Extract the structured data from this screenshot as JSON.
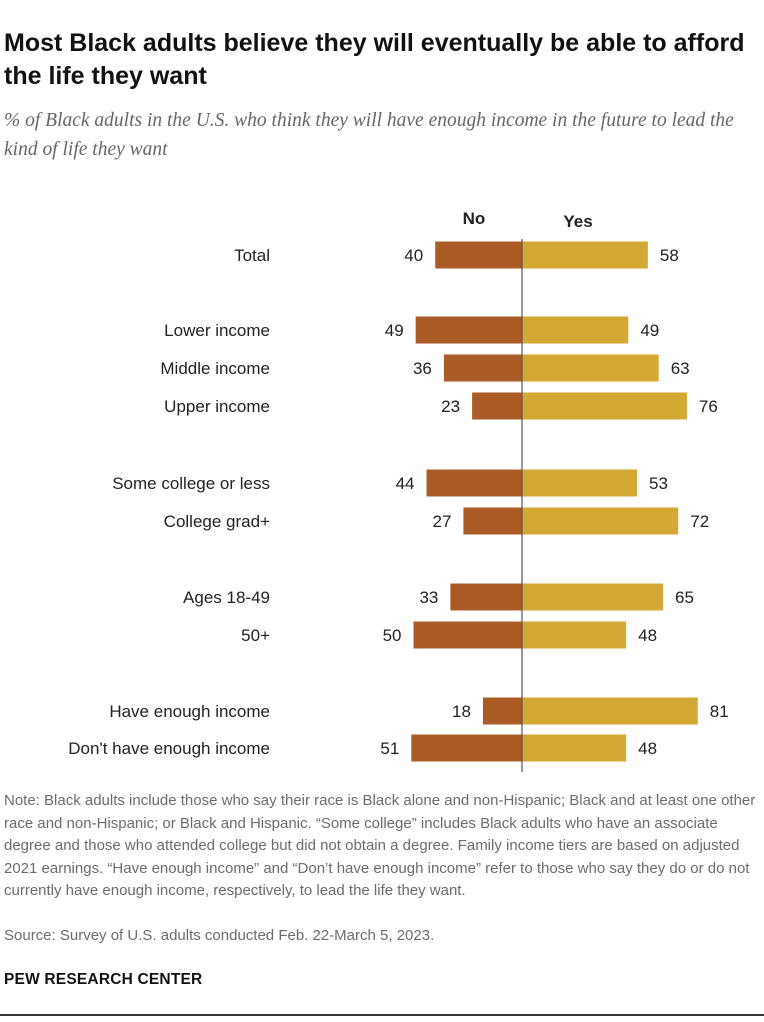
{
  "title": "Most Black adults believe they will eventually be able to afford the life they want",
  "subtitle": "% of Black adults in the U.S. who think they will have enough income in the future to lead the kind of life they want",
  "note": "Note: Black adults include those who say their race is Black alone and non-Hispanic; Black and at least one other race and non-Hispanic; or Black and Hispanic. “Some college” includes Black adults who have an associate degree and those who attended college but did not obtain a degree. Family income tiers are based on adjusted 2021 earnings. “Have enough income” and “Don’t have enough income” refer to those who say they do or do not currently have enough income, respectively, to lead the life they want.",
  "source": "Source: Survey of U.S. adults conducted Feb. 22-March 5, 2023.",
  "brand": "PEW RESEARCH CENTER",
  "colors": {
    "no": "#ab5b25",
    "yes": "#d4a835",
    "axis": "#555555"
  },
  "chart_data": {
    "type": "bar",
    "orientation": "diverging-horizontal",
    "categories": [
      "Total",
      "Lower income",
      "Middle income",
      "Upper income",
      "Some college or less",
      "College grad+",
      "Ages 18-49",
      "50+",
      "Have enough income",
      "Don't have enough income"
    ],
    "groups": [
      [
        0
      ],
      [
        1,
        2,
        3
      ],
      [
        4,
        5
      ],
      [
        6,
        7
      ],
      [
        8,
        9
      ]
    ],
    "series": [
      {
        "name": "No",
        "values": [
          40,
          49,
          36,
          23,
          44,
          27,
          33,
          50,
          18,
          51
        ]
      },
      {
        "name": "Yes",
        "values": [
          58,
          49,
          63,
          76,
          53,
          72,
          65,
          48,
          81,
          48
        ]
      }
    ],
    "xlim": [
      -100,
      100
    ],
    "legend": "column headers above bars"
  }
}
